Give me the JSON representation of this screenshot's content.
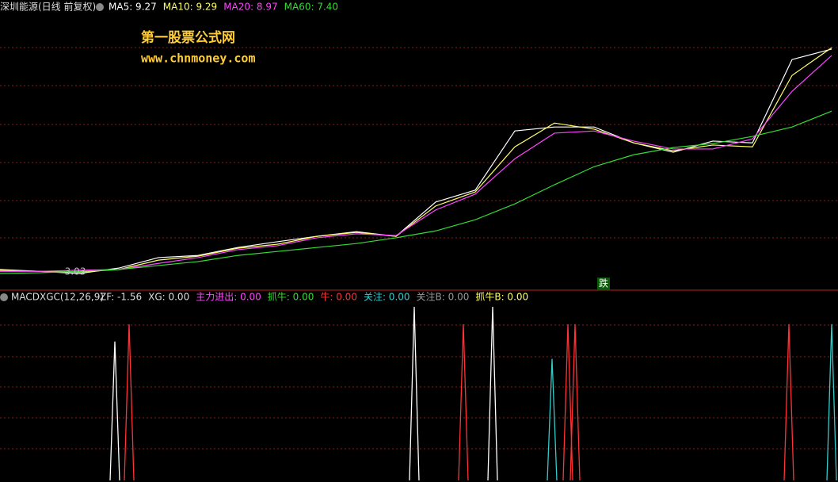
{
  "header": {
    "title": "深圳能源(日线 前复权)",
    "items": [
      {
        "text": "MA5: 9.27",
        "color": "#ffffff"
      },
      {
        "text": "MA10: 9.29",
        "color": "#ffff66"
      },
      {
        "text": "MA20: 8.97",
        "color": "#ff44ff"
      },
      {
        "text": "MA60: 7.40",
        "color": "#33dd33"
      }
    ]
  },
  "watermark": {
    "name": "第一股票公式网",
    "url": "www.chnmoney.com"
  },
  "chart_data": [
    {
      "type": "line",
      "xlim": [
        0,
        105.8
      ],
      "ylim": [
        2.55,
        10.57
      ],
      "x": [
        0,
        5,
        10,
        15,
        20,
        25,
        30,
        35,
        40,
        45,
        50,
        55,
        60,
        65,
        70,
        75,
        80,
        85,
        90,
        95,
        100,
        105
      ],
      "series": [
        {
          "name": "MA5",
          "color": "#ffffff",
          "values": [
            3.1,
            3.05,
            2.99,
            3.14,
            3.43,
            3.49,
            3.71,
            3.87,
            4.02,
            4.15,
            4.02,
            4.97,
            5.3,
            6.94,
            7.05,
            7.05,
            6.61,
            6.35,
            6.66,
            6.61,
            8.92,
            9.21
          ]
        },
        {
          "name": "MA10",
          "color": "#ffff66",
          "values": [
            3.08,
            3.05,
            3.03,
            3.1,
            3.36,
            3.47,
            3.69,
            3.8,
            4.02,
            4.13,
            4.02,
            4.86,
            5.25,
            6.5,
            7.16,
            6.99,
            6.61,
            6.39,
            6.55,
            6.5,
            8.48,
            9.25
          ]
        },
        {
          "name": "MA20",
          "color": "#ff44ff",
          "values": [
            3.05,
            3.05,
            3.08,
            3.1,
            3.27,
            3.43,
            3.65,
            3.76,
            3.98,
            4.09,
            4.04,
            4.75,
            5.19,
            6.17,
            6.88,
            6.94,
            6.66,
            6.44,
            6.44,
            6.72,
            8.04,
            9.03
          ]
        },
        {
          "name": "MA60",
          "color": "#33dd33",
          "values": [
            2.99,
            3.01,
            3.05,
            3.1,
            3.21,
            3.32,
            3.49,
            3.6,
            3.71,
            3.82,
            3.98,
            4.17,
            4.48,
            4.92,
            5.45,
            5.95,
            6.28,
            6.48,
            6.59,
            6.79,
            7.05,
            7.49
          ]
        }
      ],
      "annotations": [
        {
          "text": "3.03",
          "x": 9.5,
          "y": 3.03
        },
        {
          "text": "跌",
          "x": 76.2,
          "y": 2.7
        }
      ]
    },
    {
      "type": "spike",
      "xlim": [
        0,
        105.8
      ],
      "ylim": [
        0,
        1
      ],
      "title": "MACDXGC(12,26,9)",
      "items": [
        {
          "text": "ZF: -1.56",
          "color": "#dddddd"
        },
        {
          "text": "XG: 0.00",
          "color": "#dddddd"
        },
        {
          "text": "主力进出: 0.00",
          "color": "#ff44ff"
        },
        {
          "text": "抓牛: 0.00",
          "color": "#33dd33"
        },
        {
          "text": "牛: 0.00",
          "color": "#ff3333"
        },
        {
          "text": "关注: 0.00",
          "color": "#33cccc"
        },
        {
          "text": "关注B: 0.00",
          "color": "#999999"
        },
        {
          "text": "抓牛B: 0.00",
          "color": "#ffff66"
        }
      ],
      "x": [
        14.5,
        16.3,
        52.3,
        58.5,
        62.2,
        69.7,
        71.7,
        72.6,
        99.6,
        105.0
      ],
      "values": [
        0.8,
        0.9,
        1.0,
        0.9,
        1.0,
        0.7,
        0.9,
        0.9,
        0.9,
        0.9
      ],
      "colors": [
        "#ffffff",
        "#ff3333",
        "#ffffff",
        "#ff3333",
        "#ffffff",
        "#33cccc",
        "#ff3333",
        "#ff3333",
        "#ff3333",
        "#33cccc"
      ]
    }
  ]
}
